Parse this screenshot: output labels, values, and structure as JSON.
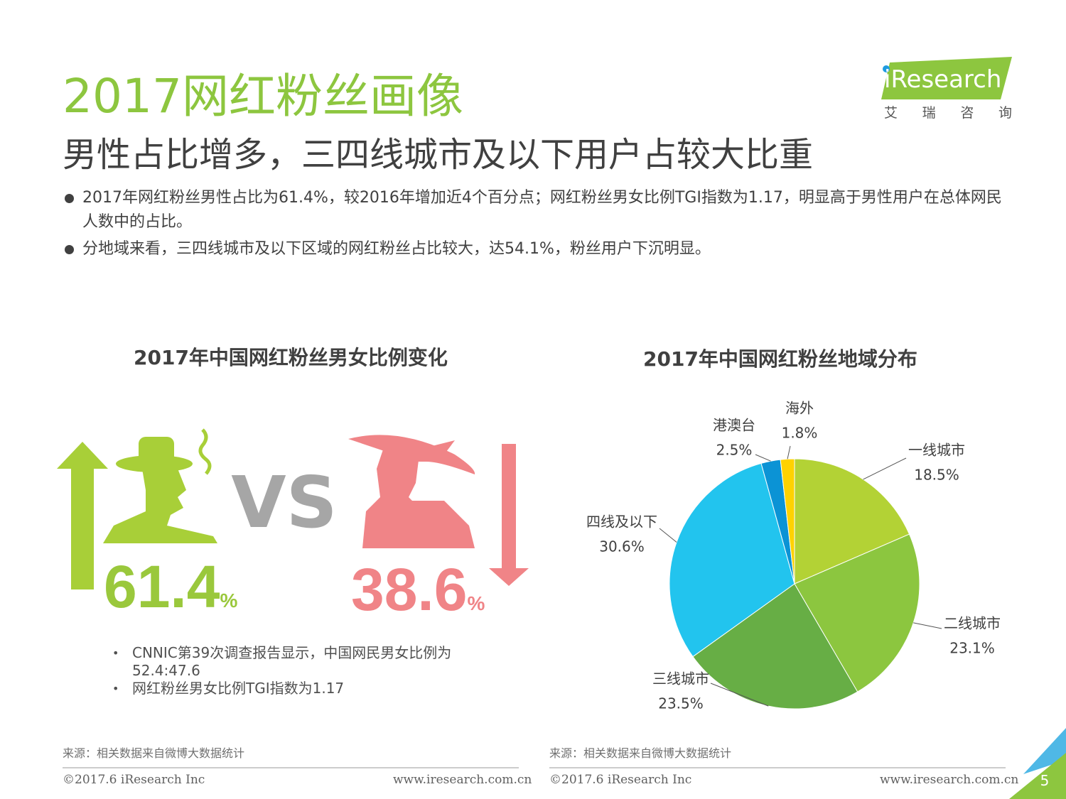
{
  "header": {
    "title": "2017网红粉丝画像",
    "subtitle": "男性占比增多，三四线城市及以下用户占较大比重",
    "logo": {
      "brand": "iResearch",
      "tagline": "艾 瑞 咨 询"
    }
  },
  "bullets": [
    "2017年网红粉丝男性占比为61.4%，较2016年增加近4个百分点；网红粉丝男女比例TGI指数为1.17，明显高于男性用户在总体网民人数中的占比。",
    "分地域来看，三四线城市及以下区域的网红粉丝占比较大，达54.1%，粉丝用户下沉明显。"
  ],
  "gender_panel": {
    "title": "2017年中国网红粉丝男女比例变化",
    "vs": "VS",
    "male": {
      "value": "61.4",
      "unit": "%"
    },
    "female": {
      "value": "38.6",
      "unit": "%"
    },
    "notes": [
      "CNNIC第39次调查报告显示，中国网民男女比例为52.4:47.6",
      "网红粉丝男女比例TGI指数为1.17"
    ]
  },
  "chart_data": {
    "type": "pie",
    "title": "2017年中国网红粉丝地域分布",
    "categories": [
      "一线城市",
      "二线城市",
      "三线城市",
      "四线及以下",
      "港澳台",
      "海外"
    ],
    "values": [
      18.5,
      23.1,
      23.5,
      30.6,
      2.5,
      1.8
    ],
    "value_labels": [
      "18.5%",
      "23.1%",
      "23.5%",
      "30.6%",
      "2.5%",
      "1.8%"
    ],
    "colors": [
      "#b3d235",
      "#8cc63f",
      "#67ae45",
      "#22c4ee",
      "#0b93d5",
      "#ffd200"
    ]
  },
  "footer": {
    "left": {
      "source": "来源：相关数据来自微博大数据统计",
      "copyright": "©2017.6 iResearch Inc",
      "website": "www.iresearch.com.cn"
    },
    "right": {
      "source": "来源：相关数据来自微博大数据统计",
      "copyright": "©2017.6 iResearch Inc",
      "website": "www.iresearch.com.cn"
    },
    "page": "5"
  }
}
